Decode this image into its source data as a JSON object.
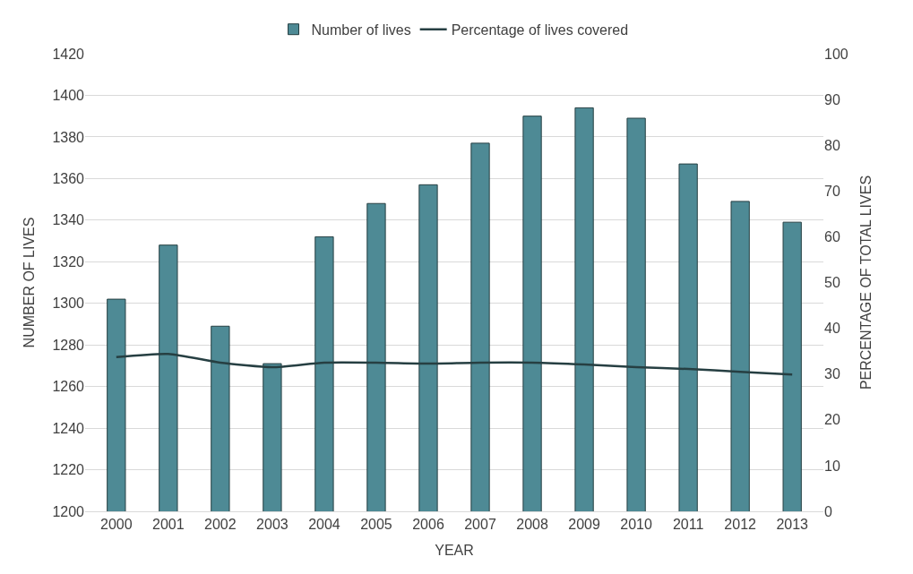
{
  "chart_data": {
    "type": "bar",
    "xlabel": "YEAR",
    "ylabel": "NUMBER OF LIVES",
    "y2label": "PERCENTAGE OF TOTAL LIVES",
    "categories": [
      "2000",
      "2001",
      "2002",
      "2003",
      "2004",
      "2005",
      "2006",
      "2007",
      "2008",
      "2009",
      "2010",
      "2011",
      "2012",
      "2013"
    ],
    "series": [
      {
        "name": "Number of lives",
        "color": "#4e8a95",
        "values": [
          1302,
          1328,
          1289,
          1271,
          1332,
          1348,
          1357,
          1377,
          1390,
          1394,
          1389,
          1367,
          1349,
          1339
        ]
      },
      {
        "name": "Percentage of lives covered",
        "type": "line",
        "axis": "y2",
        "color": "#263f42",
        "values": [
          33.7,
          34.4,
          32.5,
          31.5,
          32.5,
          32.5,
          32.3,
          32.5,
          32.5,
          32.1,
          31.5,
          31.1,
          30.5,
          29.9
        ]
      }
    ],
    "ylim": [
      1200,
      1420
    ],
    "yticks": [
      1200,
      1220,
      1240,
      1260,
      1280,
      1300,
      1320,
      1340,
      1360,
      1380,
      1400,
      1420
    ],
    "y2lim": [
      0,
      100
    ],
    "y2ticks": [
      0,
      10,
      20,
      30,
      40,
      50,
      60,
      70,
      80,
      90,
      100
    ],
    "grid": "y",
    "legend": "top",
    "marker": "none",
    "line_style": "solid"
  }
}
